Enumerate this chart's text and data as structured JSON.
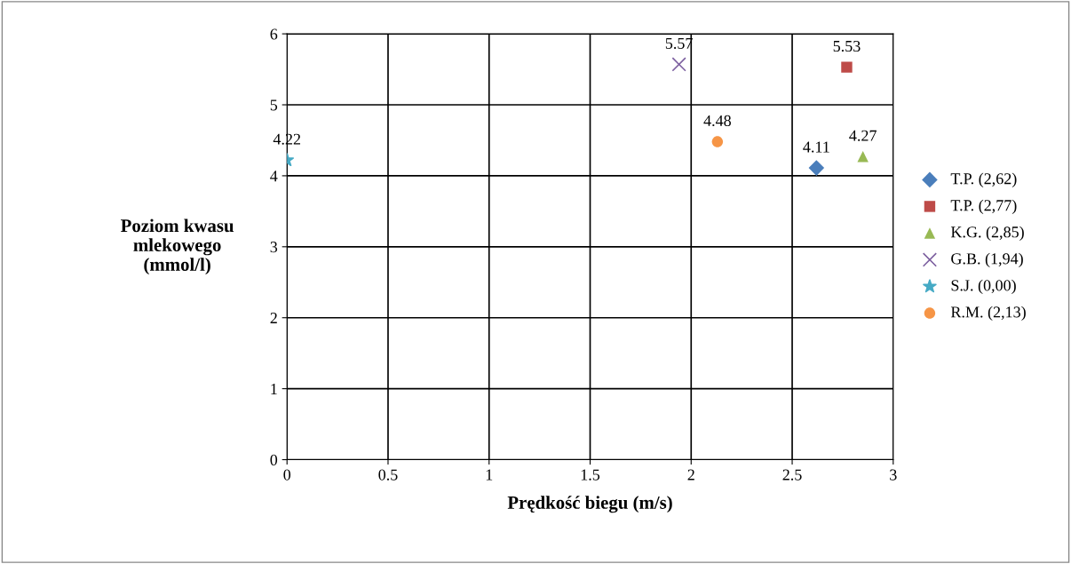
{
  "chart_data": {
    "type": "scatter",
    "xlabel": "Prędkość biegu (m/s)",
    "ylabel": "Poziom kwasu\nmlekowego\n(mmol/l)",
    "xlim": [
      0,
      3
    ],
    "xticks": [
      0,
      0.5,
      1,
      1.5,
      2,
      2.5,
      3
    ],
    "ylim": [
      0,
      6
    ],
    "yticks": [
      0,
      1,
      2,
      3,
      4,
      5,
      6
    ],
    "grid": true,
    "legend": "right",
    "data_labels": true,
    "series": [
      {
        "name": "T.P. (2,62)",
        "color": "#4a7ebb",
        "marker": "diamond",
        "x": [
          2.62
        ],
        "values": [
          4.11
        ]
      },
      {
        "name": "T.P. (2,77)",
        "color": "#be4b48",
        "marker": "square",
        "x": [
          2.77
        ],
        "values": [
          5.53
        ]
      },
      {
        "name": "K.G. (2,85)",
        "color": "#98b954",
        "marker": "triangle",
        "x": [
          2.85
        ],
        "values": [
          4.27
        ]
      },
      {
        "name": "G.B. (1,94)",
        "color": "#7d60a0",
        "marker": "cross",
        "x": [
          1.94
        ],
        "values": [
          5.57
        ]
      },
      {
        "name": "S.J. (0,00)",
        "color": "#46aac5",
        "marker": "star",
        "x": [
          0.0
        ],
        "values": [
          4.22
        ]
      },
      {
        "name": "R.M. (2,13)",
        "color": "#f69546",
        "marker": "circle",
        "x": [
          2.13
        ],
        "values": [
          4.48
        ]
      }
    ]
  }
}
